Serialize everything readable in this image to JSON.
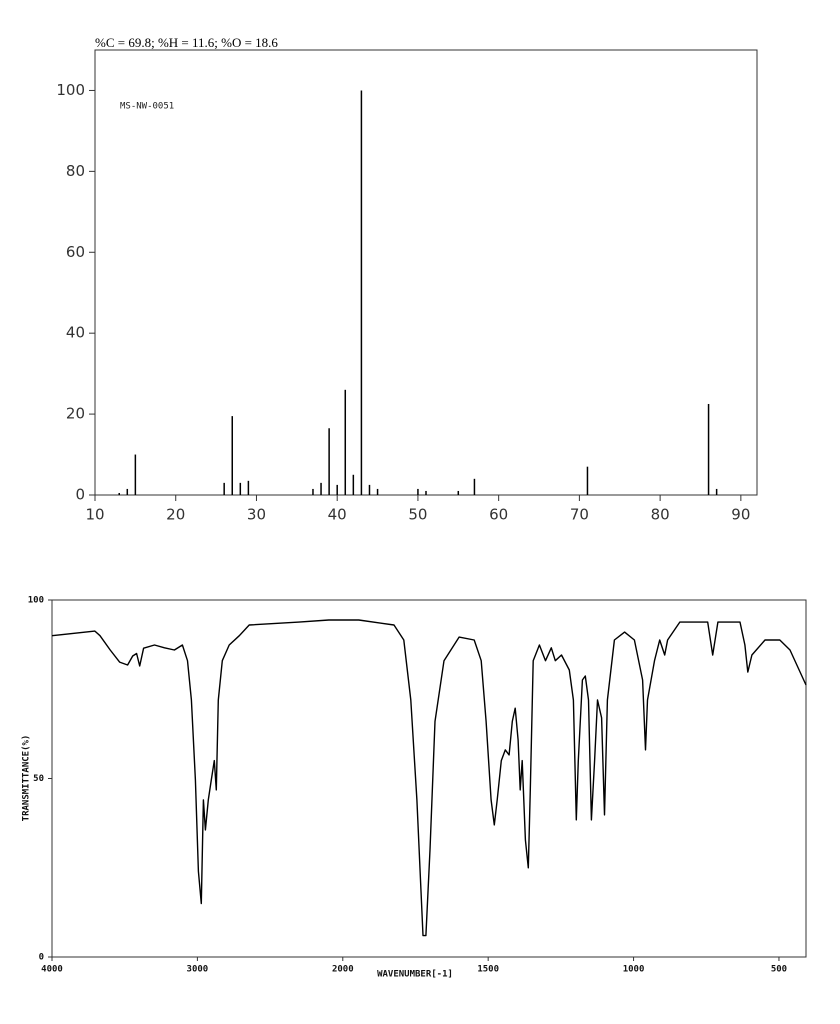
{
  "chart_data": [
    {
      "type": "bar",
      "title": "%C = 69.8; %H = 11.6; %O = 18.6",
      "annotation": "MS-NW-0051",
      "x": [
        13,
        14,
        15,
        26,
        27,
        28,
        29,
        37,
        38,
        39,
        40,
        41,
        42,
        43,
        44,
        45,
        50,
        51,
        55,
        57,
        71,
        86,
        87
      ],
      "values": [
        0.5,
        1.5,
        10,
        3,
        19.5,
        3,
        3.5,
        1.5,
        3,
        16.5,
        2.5,
        26,
        5,
        100,
        2.5,
        1.5,
        1.5,
        1,
        1,
        4,
        7,
        22.5,
        1.5
      ],
      "color": "#000000",
      "xlim": [
        10,
        92
      ],
      "xticks": [
        10,
        20,
        30,
        40,
        50,
        60,
        70,
        80,
        90
      ],
      "ylim": [
        0,
        110
      ],
      "yticks": [
        0,
        20,
        40,
        60,
        80,
        100
      ]
    },
    {
      "type": "line",
      "xlabel": "WAVENUMBER[-1]",
      "ylabel": "TRANSMITTANCE(%)",
      "x_scale": "piecewise",
      "x": [
        4000,
        3705,
        3670,
        3600,
        3535,
        3480,
        3445,
        3418,
        3397,
        3370,
        3295,
        3226,
        3158,
        3103,
        3068,
        3041,
        3014,
        2993,
        2973,
        2959,
        2945,
        2925,
        2904,
        2884,
        2870,
        2856,
        2829,
        2781,
        2712,
        2644,
        2301,
        2096,
        1945,
        1824,
        1790,
        1766,
        1745,
        1724,
        1714,
        1700,
        1683,
        1652,
        1600,
        1548,
        1524,
        1507,
        1490,
        1479,
        1469,
        1455,
        1441,
        1428,
        1417,
        1407,
        1397,
        1390,
        1383,
        1372,
        1362,
        1355,
        1345,
        1324,
        1303,
        1283,
        1269,
        1248,
        1221,
        1207,
        1197,
        1190,
        1176,
        1166,
        1155,
        1145,
        1134,
        1124,
        1110,
        1100,
        1090,
        1066,
        1031,
        997,
        969,
        959,
        952,
        928,
        910,
        893,
        883,
        841,
        745,
        728,
        710,
        634,
        617,
        607,
        593,
        548,
        497,
        462,
        407
      ],
      "values": [
        90,
        91.3,
        90,
        86,
        82.6,
        81.8,
        84.3,
        85,
        81.5,
        86.5,
        87.4,
        86.6,
        86,
        87.4,
        83,
        72,
        49.6,
        24,
        15,
        44,
        35.6,
        44,
        49.6,
        55,
        46.8,
        72,
        83,
        87.4,
        90,
        93,
        93.8,
        94.4,
        94.4,
        93,
        88.8,
        72,
        44,
        6,
        6,
        30,
        66,
        83,
        89.6,
        88.8,
        83,
        66,
        44,
        37,
        44,
        55,
        58,
        56.6,
        66,
        69.7,
        60.8,
        46.8,
        55,
        32.8,
        25,
        46.8,
        83,
        87.4,
        83,
        86.6,
        83,
        84.6,
        80.4,
        72,
        38.4,
        55,
        77.6,
        78.7,
        72,
        38.4,
        55,
        72,
        67,
        39.8,
        72,
        88.8,
        91,
        88.8,
        77.6,
        58,
        72,
        83,
        88.8,
        84.6,
        88.8,
        93.8,
        93.8,
        84.6,
        93.8,
        93.8,
        87.4,
        79.8,
        84.6,
        88.8,
        88.8,
        86,
        76.2
      ],
      "color": "#000000",
      "xlim": [
        4000,
        407
      ],
      "xticks": [
        4000,
        3000,
        2000,
        1500,
        1000,
        500
      ],
      "ylim": [
        0,
        100
      ],
      "yticks": [
        0,
        50,
        100
      ]
    }
  ]
}
